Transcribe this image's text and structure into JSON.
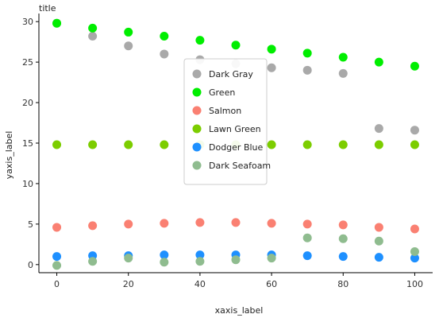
{
  "chart_data": {
    "type": "scatter",
    "title": "title",
    "xlabel": "xaxis_label",
    "ylabel": "yaxis_label",
    "xlim": [
      -5,
      105
    ],
    "ylim": [
      -1,
      31
    ],
    "xticks": [
      0,
      20,
      40,
      60,
      80,
      100
    ],
    "yticks": [
      0,
      5,
      10,
      15,
      20,
      25,
      30
    ],
    "x": [
      0,
      10,
      20,
      30,
      40,
      50,
      60,
      70,
      80,
      90,
      100
    ],
    "grid": false,
    "legend_position": "center",
    "series": [
      {
        "name": "Dark Gray",
        "color": "#a9a9a9",
        "values": [
          29.8,
          28.2,
          27.0,
          26.0,
          25.3,
          24.8,
          24.3,
          24.0,
          23.6,
          16.8,
          16.6
        ]
      },
      {
        "name": "Green",
        "color": "#00ee00",
        "values": [
          29.8,
          29.2,
          28.7,
          28.2,
          27.7,
          27.1,
          26.6,
          26.1,
          25.6,
          25.0,
          24.5
        ]
      },
      {
        "name": "Salmon",
        "color": "#fa8072",
        "values": [
          4.6,
          4.8,
          5.0,
          5.1,
          5.2,
          5.2,
          5.1,
          5.0,
          4.9,
          4.6,
          4.4
        ]
      },
      {
        "name": "Lawn Green",
        "color": "#7ccd00",
        "values": [
          14.8,
          14.8,
          14.8,
          14.8,
          14.8,
          14.8,
          14.8,
          14.8,
          14.8,
          14.8,
          14.8
        ]
      },
      {
        "name": "Dodger Blue",
        "color": "#1e90ff",
        "values": [
          1.0,
          1.1,
          1.1,
          1.2,
          1.2,
          1.2,
          1.2,
          1.1,
          1.0,
          0.9,
          0.8
        ]
      },
      {
        "name": "Dark Seafoam",
        "color": "#8fbc8f",
        "values": [
          -0.1,
          0.4,
          0.8,
          0.3,
          0.4,
          0.6,
          0.8,
          3.3,
          3.2,
          2.9,
          1.6
        ]
      }
    ]
  }
}
